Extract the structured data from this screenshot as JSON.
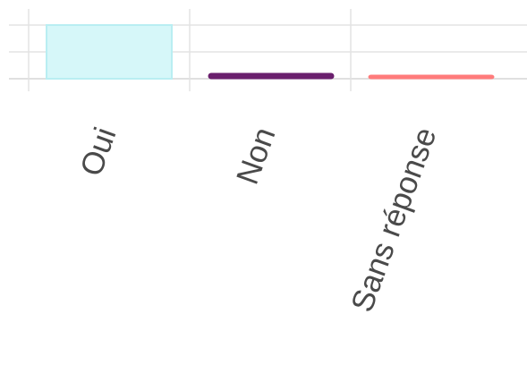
{
  "chart_data": {
    "type": "bar",
    "categories": [
      "Oui",
      "Non",
      "Sans réponse"
    ],
    "values": [
      6,
      0.6,
      0.4
    ],
    "colors": [
      "#d6f7f9",
      "#6a1f6d",
      "#ff7b7b"
    ],
    "bar_outline_colors": [
      "#b9eef2",
      "#6a1f6d",
      "#ff7b7b"
    ],
    "ylim": [
      0,
      7
    ],
    "grid": true,
    "legend": "none",
    "title": "",
    "xlabel": "",
    "ylabel": ""
  }
}
